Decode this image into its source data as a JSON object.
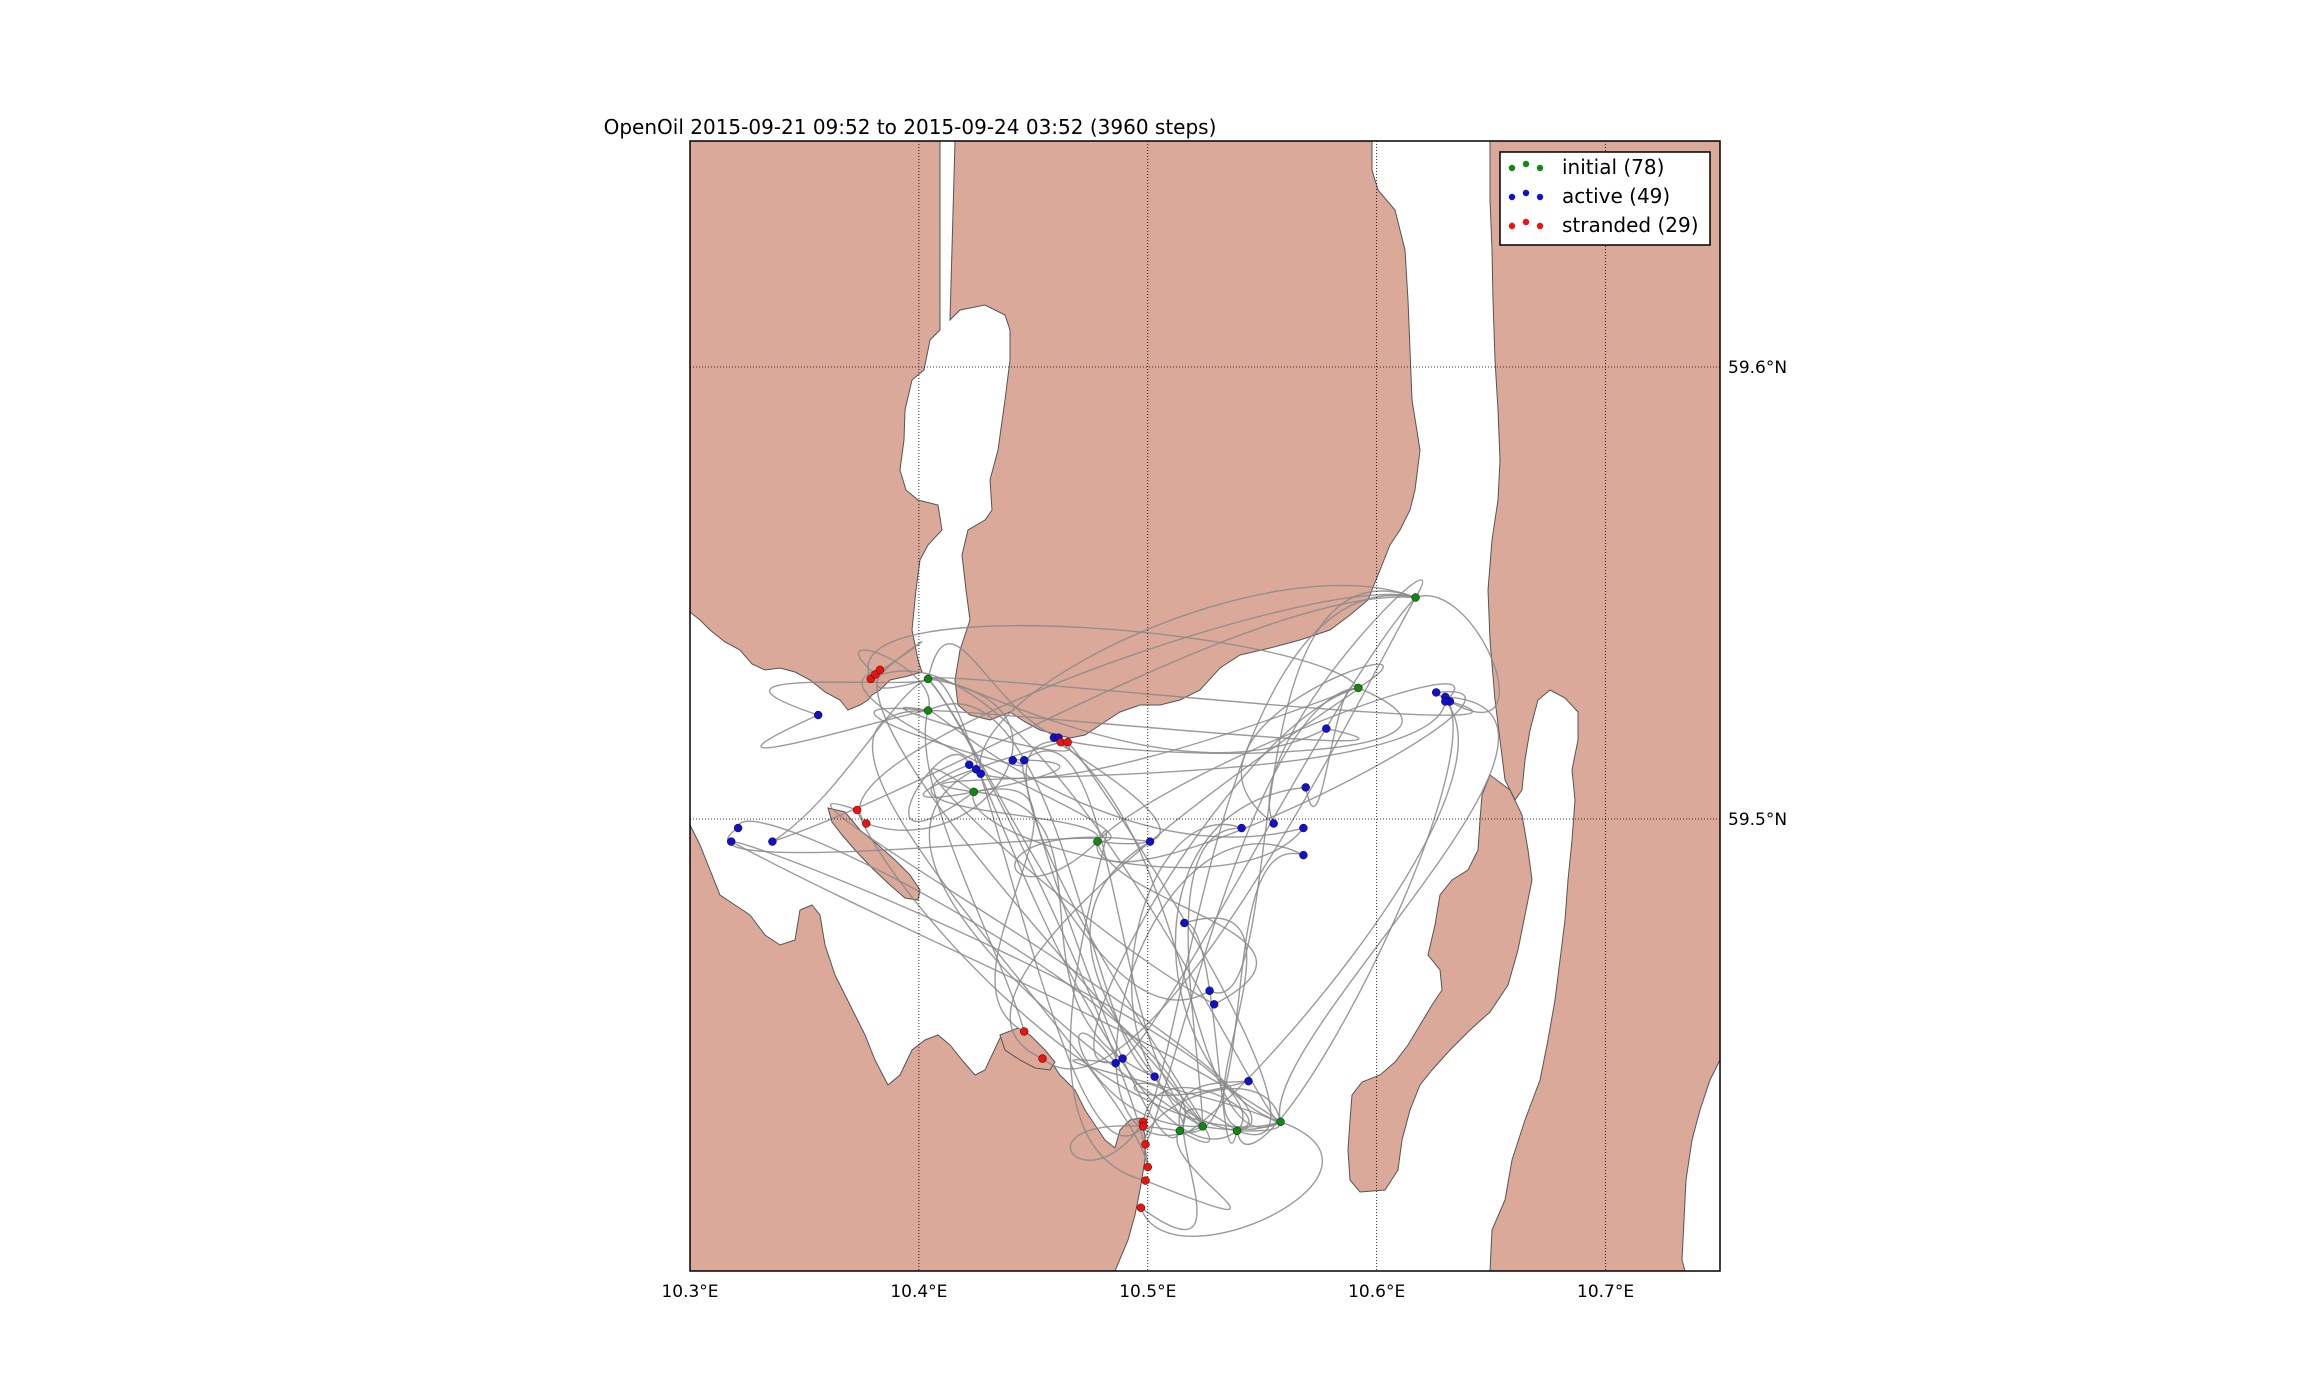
{
  "title": "OpenOil  2015-09-21 09:52 to 2015-09-24 03:52 (3960 steps)",
  "colors": {
    "land": "#dba999",
    "land_edge": "#555555",
    "trajectory": "#8a8a8a",
    "initial": "#118811",
    "active": "#1111cc",
    "stranded": "#ee1111",
    "grid": "#000000"
  },
  "map": {
    "lon_range": [
      10.3,
      10.75
    ],
    "lat_range": [
      59.4,
      59.65
    ],
    "lon_ticks": [
      {
        "value": 10.3,
        "label": "10.3°E"
      },
      {
        "value": 10.4,
        "label": "10.4°E"
      },
      {
        "value": 10.5,
        "label": "10.5°E"
      },
      {
        "value": 10.6,
        "label": "10.6°E"
      },
      {
        "value": 10.7,
        "label": "10.7°E"
      }
    ],
    "lat_ticks": [
      {
        "value": 59.6,
        "label": "59.6°N"
      },
      {
        "value": 59.5,
        "label": "59.5°N"
      }
    ],
    "grid": "dotted"
  },
  "legend": {
    "placement": "top-right",
    "entries": [
      {
        "key": "initial",
        "label": "initial (78)"
      },
      {
        "key": "active",
        "label": "active (49)"
      },
      {
        "key": "stranded",
        "label": "stranded (29)"
      }
    ]
  },
  "markers": {
    "initial": [
      [
        10.404,
        59.531
      ],
      [
        10.404,
        59.524
      ],
      [
        10.424,
        59.506
      ],
      [
        10.478,
        59.495
      ],
      [
        10.514,
        59.431
      ],
      [
        10.524,
        59.432
      ],
      [
        10.539,
        59.431
      ],
      [
        10.558,
        59.433
      ],
      [
        10.592,
        59.529
      ],
      [
        10.617,
        59.549
      ]
    ],
    "active": [
      [
        10.356,
        59.523
      ],
      [
        10.321,
        59.498
      ],
      [
        10.318,
        59.495
      ],
      [
        10.336,
        59.495
      ],
      [
        10.422,
        59.512
      ],
      [
        10.425,
        59.511
      ],
      [
        10.427,
        59.51
      ],
      [
        10.441,
        59.513
      ],
      [
        10.446,
        59.513
      ],
      [
        10.459,
        59.518
      ],
      [
        10.461,
        59.518
      ],
      [
        10.501,
        59.495
      ],
      [
        10.516,
        59.477
      ],
      [
        10.527,
        59.462
      ],
      [
        10.529,
        59.459
      ],
      [
        10.541,
        59.498
      ],
      [
        10.555,
        59.499
      ],
      [
        10.568,
        59.498
      ],
      [
        10.568,
        59.492
      ],
      [
        10.569,
        59.507
      ],
      [
        10.578,
        59.52
      ],
      [
        10.626,
        59.528
      ],
      [
        10.63,
        59.527
      ],
      [
        10.632,
        59.526
      ],
      [
        10.63,
        59.526
      ],
      [
        10.486,
        59.446
      ],
      [
        10.489,
        59.447
      ],
      [
        10.503,
        59.443
      ],
      [
        10.544,
        59.442
      ]
    ],
    "stranded": [
      [
        10.379,
        59.531
      ],
      [
        10.381,
        59.532
      ],
      [
        10.383,
        59.533
      ],
      [
        10.373,
        59.502
      ],
      [
        10.377,
        59.499
      ],
      [
        10.462,
        59.517
      ],
      [
        10.465,
        59.517
      ],
      [
        10.454,
        59.447
      ],
      [
        10.446,
        59.453
      ],
      [
        10.498,
        59.433
      ],
      [
        10.499,
        59.428
      ],
      [
        10.5,
        59.423
      ],
      [
        10.499,
        59.42
      ],
      [
        10.497,
        59.414
      ],
      [
        10.498,
        59.432
      ]
    ]
  }
}
